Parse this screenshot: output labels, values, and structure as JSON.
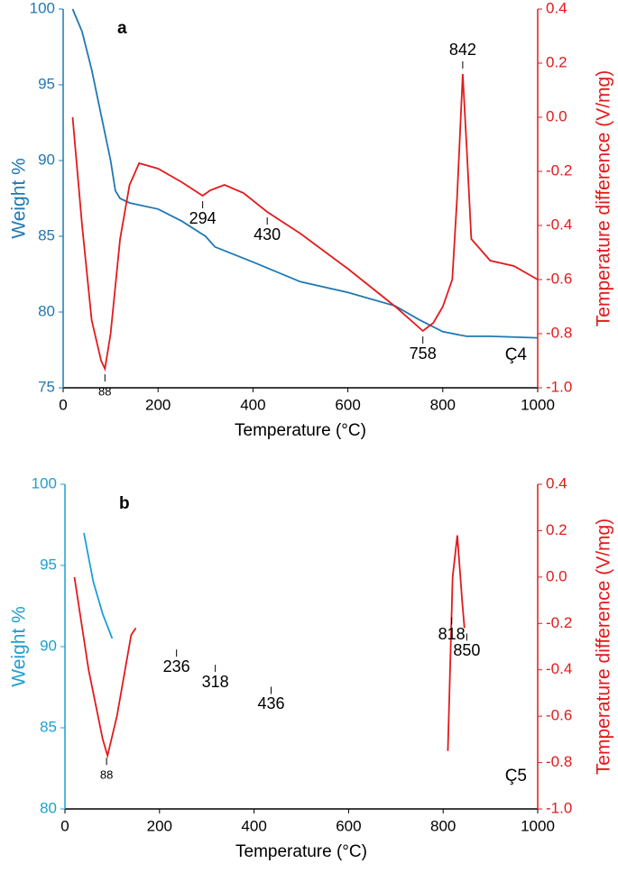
{
  "chart_data": [
    {
      "type": "line",
      "panel_label": "a",
      "sample_label": "Ç4",
      "x_label": "Temperature (°C)",
      "y_label": "Weight %",
      "y2_label": "Temperature difference (V/mg)",
      "xlim": [
        0,
        1000
      ],
      "xticks": [
        0,
        200,
        400,
        600,
        800,
        1000
      ],
      "ylim": [
        75,
        100
      ],
      "yticks": [
        75,
        80,
        85,
        90,
        95,
        100
      ],
      "y2lim": [
        -1.0,
        0.4
      ],
      "y2ticks": [
        {
          "value": -1.0,
          "label": "-1.0"
        },
        -0.8,
        -0.6,
        -0.4,
        -0.2,
        {
          "value": 0,
          "label": "0.0"
        },
        0.2,
        0.4
      ],
      "grid": false,
      "y_color": "#1f78b4",
      "y2_color": "#e31a1c",
      "series": [
        {
          "name": "Weight",
          "color": "#1f78b4",
          "axis": "y",
          "x": [
            20,
            40,
            60,
            80,
            100,
            110,
            120,
            140,
            200,
            250,
            300,
            320,
            400,
            500,
            600,
            700,
            750,
            800,
            850,
            900,
            1000
          ],
          "values": [
            100,
            98.5,
            96,
            93,
            90,
            88,
            87.5,
            87.2,
            86.8,
            86,
            85,
            84.3,
            83.3,
            82,
            81.3,
            80.4,
            79.5,
            78.7,
            78.4,
            78.4,
            78.3
          ]
        },
        {
          "name": "DTA",
          "color": "#e31a1c",
          "axis": "y2",
          "x": [
            20,
            40,
            60,
            80,
            88,
            100,
            120,
            140,
            160,
            200,
            250,
            294,
            310,
            340,
            380,
            430,
            500,
            600,
            700,
            758,
            780,
            800,
            820,
            830,
            842,
            850,
            860,
            900,
            950,
            1000
          ],
          "values": [
            0.0,
            -0.4,
            -0.75,
            -0.9,
            -0.93,
            -0.8,
            -0.45,
            -0.25,
            -0.17,
            -0.19,
            -0.24,
            -0.29,
            -0.27,
            -0.25,
            -0.28,
            -0.35,
            -0.43,
            -0.56,
            -0.7,
            -0.79,
            -0.76,
            -0.7,
            -0.6,
            -0.3,
            0.16,
            -0.1,
            -0.45,
            -0.53,
            -0.55,
            -0.6
          ]
        }
      ],
      "peak_labels": [
        88,
        294,
        430,
        758,
        842
      ]
    },
    {
      "type": "line",
      "panel_label": "b",
      "sample_label": "Ç5",
      "x_label": "Temperature (°C)",
      "y_label": "Weight %",
      "y2_label": "Temperature difference (V/mg)",
      "xlim": [
        0,
        1000
      ],
      "xticks": [
        0,
        200,
        400,
        600,
        800,
        1000
      ],
      "ylim": [
        80,
        100
      ],
      "yticks": [
        80,
        85,
        90,
        95,
        100
      ],
      "y2lim": [
        -1.0,
        0.4
      ],
      "y2ticks": [
        {
          "value": -1.0,
          "label": "-1.0"
        },
        -0.8,
        -0.6,
        -0.4,
        -0.2,
        {
          "value": 0,
          "label": "0.0"
        },
        0.2,
        0.4
      ],
      "grid": false,
      "y_color": "#1f9fd0",
      "y2_color": "#e31a1c",
      "series": [
        {
          "name": "Weight",
          "color": "#1f9fd0",
          "axis": "y",
          "x": [
            40,
            60,
            80,
            100
          ],
          "values": [
            97,
            94,
            92,
            90.5
          ]
        },
        {
          "name": "DTA",
          "color": "#e31a1c",
          "axis": "y2",
          "x": [
            20,
            50,
            80,
            90,
            110,
            140,
            150,
            800,
            810,
            820,
            830,
            840,
            845
          ],
          "values": [
            0,
            -0.4,
            -0.7,
            -0.77,
            -0.6,
            -0.25,
            -0.22,
            null,
            -0.75,
            0,
            0.18,
            -0.1,
            -0.22
          ]
        }
      ],
      "peak_labels": [
        88,
        236,
        318,
        436,
        818,
        850
      ]
    }
  ]
}
